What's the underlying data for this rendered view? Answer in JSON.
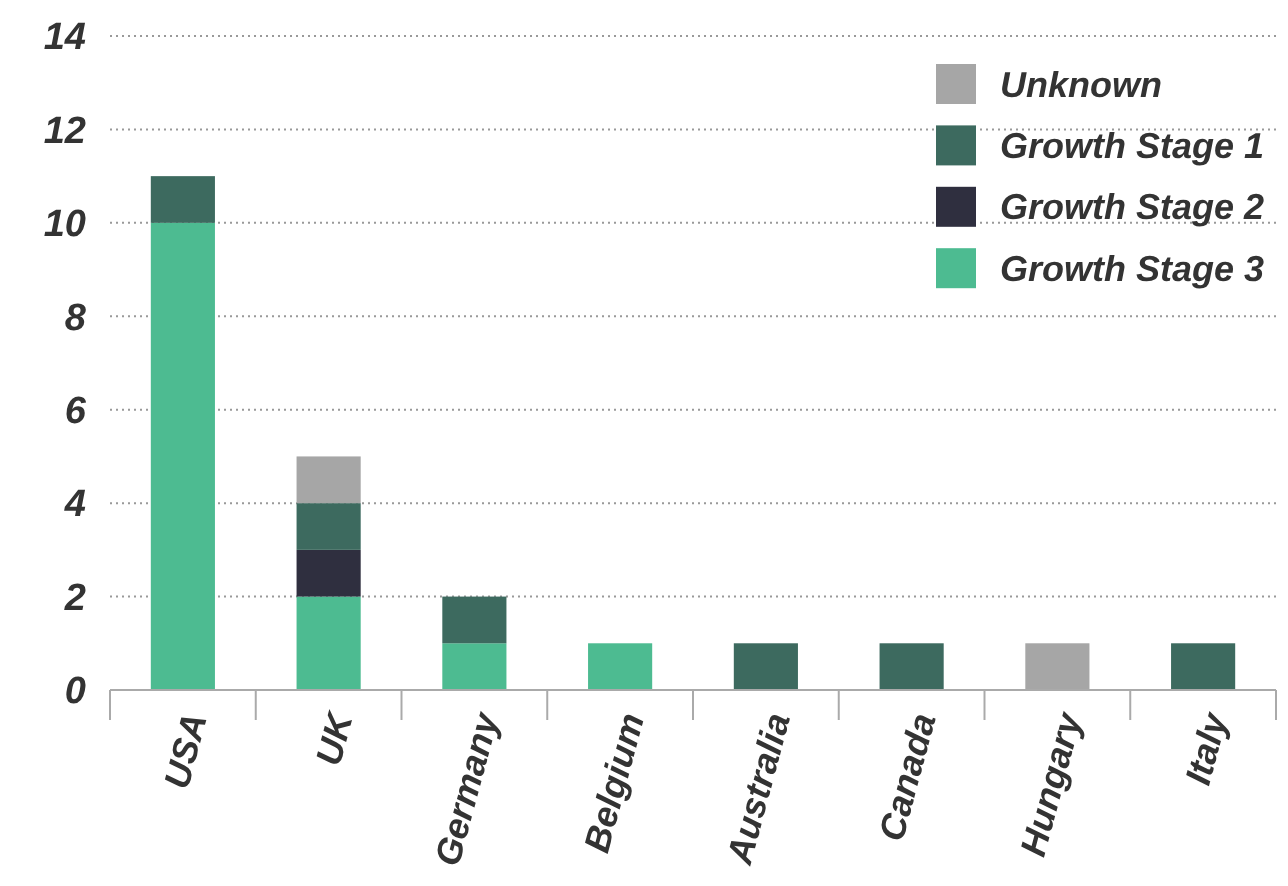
{
  "chart_data": {
    "type": "bar",
    "stacked": true,
    "categories": [
      "USA",
      "UK",
      "Germany",
      "Belgium",
      "Australia",
      "Canada",
      "Hungary",
      "Italy"
    ],
    "series": [
      {
        "name": "Growth Stage 3",
        "color": "#4dbb91",
        "values": [
          10,
          2,
          1,
          1,
          0,
          0,
          0,
          0
        ]
      },
      {
        "name": "Growth Stage 2",
        "color": "#2f2f3f",
        "values": [
          0,
          1,
          0,
          0,
          0,
          0,
          0,
          0
        ]
      },
      {
        "name": "Growth Stage 1",
        "color": "#3d6a5f",
        "values": [
          1,
          1,
          1,
          0,
          1,
          1,
          0,
          1
        ]
      },
      {
        "name": "Unknown",
        "color": "#a6a6a6",
        "values": [
          0,
          1,
          0,
          0,
          0,
          0,
          1,
          0
        ]
      }
    ],
    "ylim": [
      0,
      14
    ],
    "yticks": [
      0,
      2,
      4,
      6,
      8,
      10,
      12,
      14
    ],
    "grid": "y",
    "legend": "top right"
  }
}
